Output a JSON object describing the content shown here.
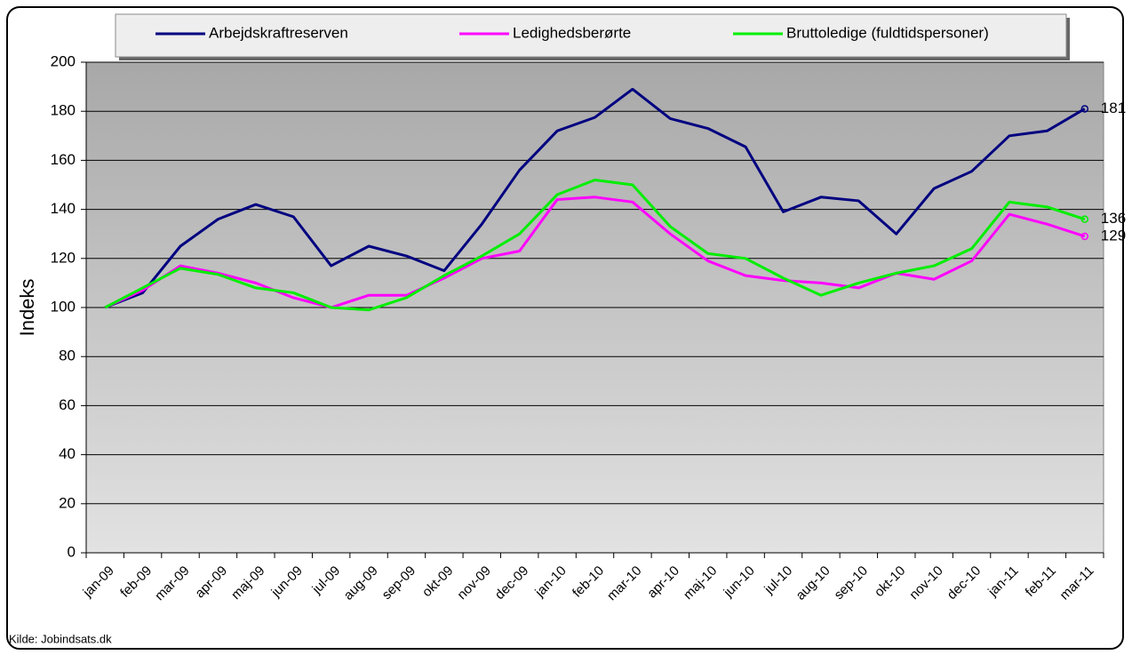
{
  "chart_data": {
    "type": "line",
    "y_label": "Indeks",
    "source": "Kilde: Jobindsats.dk",
    "categories": [
      "jan-09",
      "feb-09",
      "mar-09",
      "apr-09",
      "maj-09",
      "jun-09",
      "jul-09",
      "aug-09",
      "sep-09",
      "okt-09",
      "nov-09",
      "dec-09",
      "jan-10",
      "feb-10",
      "mar-10",
      "apr-10",
      "maj-10",
      "jun-10",
      "jul-10",
      "aug-10",
      "sep-10",
      "okt-10",
      "nov-10",
      "dec-10",
      "jan-11",
      "feb-11",
      "mar-11"
    ],
    "series": [
      {
        "name": "Arbejdskraftreserven",
        "color": "#000080",
        "values": [
          100,
          106,
          125,
          136,
          142,
          137,
          117,
          125,
          121,
          115,
          134,
          156,
          172,
          177.5,
          189,
          177,
          173,
          165.5,
          139,
          145,
          143.5,
          130,
          148.5,
          155.5,
          170,
          172,
          181
        ]
      },
      {
        "name": "Ledighedsberørte",
        "color": "#ff00ff",
        "values": [
          100,
          107,
          117,
          114,
          110,
          104,
          100,
          105,
          105,
          112,
          120,
          123,
          144,
          145,
          143,
          130,
          119,
          113,
          111,
          110,
          108,
          114,
          111.5,
          119,
          138,
          134,
          129
        ]
      },
      {
        "name": "Bruttoledige (fuldtidspersoner)",
        "color": "#00ee00",
        "values": [
          100,
          108,
          116,
          113.5,
          108,
          106,
          100,
          99,
          104,
          113,
          121,
          130,
          146,
          152,
          150,
          133,
          122,
          120,
          112,
          105,
          110,
          114,
          117,
          124,
          143,
          141,
          136
        ]
      }
    ],
    "ylim": [
      0,
      200
    ],
    "yticks": [
      0,
      20,
      40,
      60,
      80,
      100,
      120,
      140,
      160,
      180,
      200
    ],
    "grid": true
  }
}
